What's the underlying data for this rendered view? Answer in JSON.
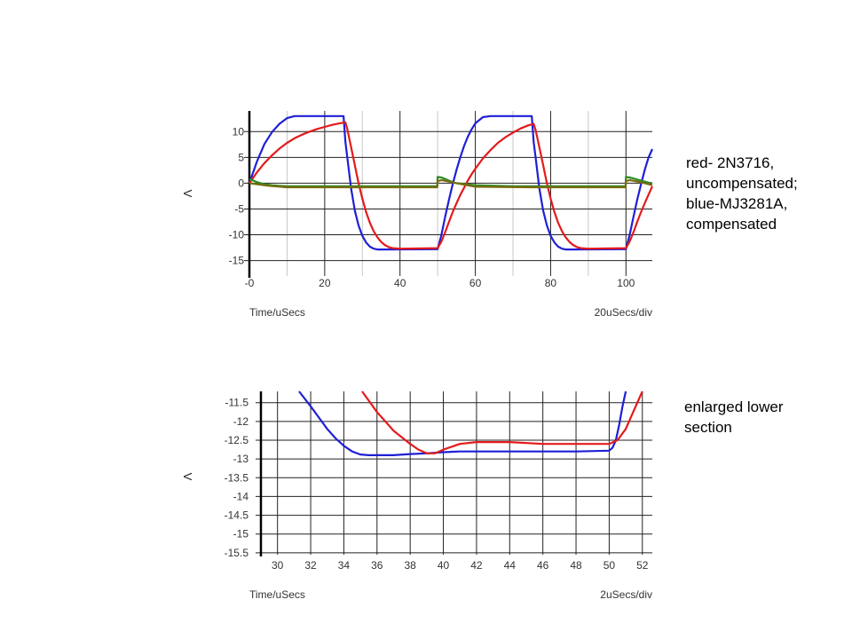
{
  "annotations": {
    "top": "red- 2N3716,\nuncompensated;\nblue-MJ3281A,\ncompensated",
    "bottom": "enlarged lower\nsection"
  },
  "chart_data": [
    {
      "type": "line",
      "xlabel": "Time/uSecs",
      "scale_label": "20uSecs/div",
      "ylabel": "V",
      "xlim": [
        0,
        107
      ],
      "ylim": [
        -18,
        14
      ],
      "xticks": [
        0,
        20,
        40,
        60,
        80,
        100
      ],
      "xtick_labels": [
        "-0",
        "20",
        "40",
        "60",
        "80",
        "100"
      ],
      "yticks": [
        10,
        5,
        0,
        -5,
        -10,
        -15
      ],
      "minor_x": [
        10,
        30,
        50,
        70,
        90
      ],
      "colors": {
        "red": "#e31a1c",
        "blue": "#1f1fd6",
        "green": "#2e8b22",
        "olive": "#7a6a10"
      },
      "series": [
        {
          "color": "#1f1fd6",
          "x": [
            0,
            2,
            4,
            6,
            8,
            10,
            12,
            14,
            25,
            25.5,
            26,
            27,
            28,
            29,
            30,
            31,
            32,
            33,
            34,
            35,
            50,
            51,
            52,
            53,
            54,
            55,
            56,
            57,
            58,
            59,
            60,
            62,
            64,
            75,
            75.5,
            76,
            77,
            78,
            79,
            80,
            81,
            82,
            83,
            84,
            85,
            100,
            101,
            102,
            103,
            104,
            105,
            106,
            107
          ],
          "y": [
            0,
            4.2,
            7.6,
            9.9,
            11.5,
            12.6,
            13,
            13,
            13,
            8,
            5,
            -1,
            -5.3,
            -8.2,
            -10.2,
            -11.5,
            -12.3,
            -12.7,
            -12.85,
            -12.85,
            -12.8,
            -10,
            -6.5,
            -3.2,
            -0.2,
            2.6,
            5,
            7.2,
            9,
            10.4,
            11.6,
            12.8,
            13,
            13,
            8,
            5,
            -1,
            -5.3,
            -8.2,
            -10.2,
            -11.5,
            -12.3,
            -12.7,
            -12.85,
            -12.85,
            -12.8,
            -10,
            -6.5,
            -3.2,
            -0.2,
            2.6,
            5,
            6.6
          ]
        },
        {
          "color": "#e31a1c",
          "x": [
            0,
            2,
            4,
            6,
            8,
            10,
            12,
            14,
            16,
            18,
            20,
            22,
            24,
            25.5,
            26,
            27,
            28,
            29,
            30,
            31,
            32,
            33,
            34,
            35,
            36,
            37,
            38,
            40,
            50,
            51,
            52,
            53,
            54,
            55,
            56,
            57,
            58,
            59,
            60,
            62,
            64,
            66,
            68,
            70,
            72,
            74,
            75.5,
            76,
            77,
            78,
            79,
            80,
            81,
            82,
            83,
            84,
            85,
            86,
            87,
            88,
            90,
            100,
            101,
            102,
            103,
            104,
            105,
            106,
            107
          ],
          "y": [
            0,
            2.1,
            3.9,
            5.4,
            6.7,
            7.8,
            8.7,
            9.4,
            10,
            10.5,
            10.9,
            11.3,
            11.6,
            11.8,
            10.5,
            7,
            3.5,
            0,
            -3,
            -5.6,
            -7.7,
            -9.3,
            -10.5,
            -11.4,
            -12,
            -12.4,
            -12.6,
            -12.7,
            -12.6,
            -11.3,
            -9.5,
            -7.5,
            -5.6,
            -3.9,
            -2.3,
            -0.9,
            0.5,
            1.7,
            2.8,
            4.8,
            6.4,
            7.8,
            8.9,
            9.8,
            10.6,
            11.2,
            11.5,
            10.3,
            7,
            3.5,
            0,
            -3,
            -5.6,
            -7.7,
            -9.3,
            -10.5,
            -11.4,
            -12,
            -12.4,
            -12.6,
            -12.7,
            -12.6,
            -11.3,
            -9.5,
            -7.5,
            -5.6,
            -3.9,
            -2.2,
            -0.6
          ]
        },
        {
          "color": "#2e8b22",
          "x": [
            0,
            2,
            4,
            6,
            8,
            10,
            20,
            25,
            49.9,
            50,
            51,
            52,
            53,
            54,
            55,
            60,
            70,
            75,
            99.9,
            100,
            101,
            102,
            103,
            104,
            105,
            106,
            107
          ],
          "y": [
            0.8,
            0.2,
            -0.2,
            -0.4,
            -0.5,
            -0.6,
            -0.6,
            -0.6,
            -0.6,
            1.2,
            1.1,
            0.8,
            0.5,
            0.2,
            0,
            -0.4,
            -0.6,
            -0.6,
            -0.6,
            1.2,
            1.1,
            0.9,
            0.7,
            0.5,
            0.3,
            0.1,
            0
          ]
        },
        {
          "color": "#7a6a10",
          "x": [
            0,
            5,
            10,
            20,
            25,
            49.9,
            50,
            51,
            53,
            55,
            60,
            75,
            99.9,
            100,
            101,
            103,
            105,
            107
          ],
          "y": [
            0,
            -0.5,
            -0.8,
            -0.8,
            -0.8,
            -0.8,
            0.4,
            0.6,
            0.3,
            0,
            -0.7,
            -0.8,
            -0.8,
            0.4,
            0.6,
            0.3,
            0,
            -0.4
          ]
        }
      ]
    },
    {
      "type": "line",
      "xlabel": "Time/uSecs",
      "scale_label": "2uSecs/div",
      "ylabel": "V",
      "xlim": [
        29,
        52.6
      ],
      "ylim": [
        -15.55,
        -11.2
      ],
      "xticks": [
        30,
        32,
        34,
        36,
        38,
        40,
        42,
        44,
        46,
        48,
        50,
        52
      ],
      "xtick_labels": [
        "30",
        "32",
        "34",
        "36",
        "38",
        "40",
        "42",
        "44",
        "46",
        "48",
        "50",
        "52"
      ],
      "yticks": [
        -11.5,
        -12,
        -12.5,
        -13,
        -13.5,
        -14,
        -14.5,
        -15,
        -15.5
      ],
      "ytick_labels": [
        "-11.5",
        "-12",
        "-12.5",
        "-13",
        "-13.5",
        "-14",
        "-14.5",
        "-15",
        "-15.5"
      ],
      "series": [
        {
          "color": "#1f1fd6",
          "x": [
            31.3,
            32,
            32.5,
            33,
            33.5,
            34,
            34.5,
            35,
            35.5,
            36,
            37,
            38,
            39,
            40,
            41,
            42,
            44,
            46,
            48,
            50,
            50.2,
            50.4,
            50.6,
            50.8,
            51
          ],
          "y": [
            -11.2,
            -11.6,
            -11.9,
            -12.2,
            -12.45,
            -12.65,
            -12.8,
            -12.88,
            -12.9,
            -12.9,
            -12.9,
            -12.87,
            -12.85,
            -12.82,
            -12.8,
            -12.8,
            -12.8,
            -12.8,
            -12.8,
            -12.78,
            -12.7,
            -12.5,
            -12.1,
            -11.6,
            -11.2
          ]
        },
        {
          "color": "#e31a1c",
          "x": [
            35.1,
            36,
            37,
            38,
            38.5,
            39,
            39.5,
            40,
            41,
            42,
            44,
            46,
            48,
            50,
            50.5,
            51,
            51.5,
            52
          ],
          "y": [
            -11.2,
            -11.75,
            -12.25,
            -12.6,
            -12.75,
            -12.85,
            -12.85,
            -12.75,
            -12.6,
            -12.55,
            -12.55,
            -12.6,
            -12.6,
            -12.6,
            -12.5,
            -12.2,
            -11.7,
            -11.2
          ]
        }
      ]
    }
  ]
}
